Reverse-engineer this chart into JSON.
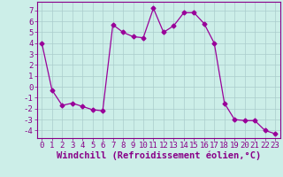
{
  "x": [
    0,
    1,
    2,
    3,
    4,
    5,
    6,
    7,
    8,
    9,
    10,
    11,
    12,
    13,
    14,
    15,
    16,
    17,
    18,
    19,
    20,
    21,
    22,
    23
  ],
  "y": [
    4.0,
    -0.3,
    -1.7,
    -1.5,
    -1.8,
    -2.1,
    -2.2,
    5.7,
    5.0,
    4.6,
    4.5,
    7.2,
    5.0,
    5.6,
    6.8,
    6.8,
    5.8,
    4.0,
    -1.5,
    -3.0,
    -3.1,
    -3.1,
    -4.0,
    -4.3
  ],
  "line_color": "#990099",
  "marker": "D",
  "markersize": 2.5,
  "bg_color": "#cceee8",
  "grid_color": "#aacccc",
  "xlabel": "Windchill (Refroidissement éolien,°C)",
  "ylabel": "",
  "title": "",
  "ylim": [
    -4.7,
    7.8
  ],
  "xlim": [
    -0.5,
    23.5
  ],
  "yticks": [
    -4,
    -3,
    -2,
    -1,
    0,
    1,
    2,
    3,
    4,
    5,
    6,
    7
  ],
  "xticks": [
    0,
    1,
    2,
    3,
    4,
    5,
    6,
    7,
    8,
    9,
    10,
    11,
    12,
    13,
    14,
    15,
    16,
    17,
    18,
    19,
    20,
    21,
    22,
    23
  ],
  "font_color": "#880088",
  "tick_fontsize": 6.5,
  "xlabel_fontsize": 7.5,
  "spine_color": "#880088"
}
